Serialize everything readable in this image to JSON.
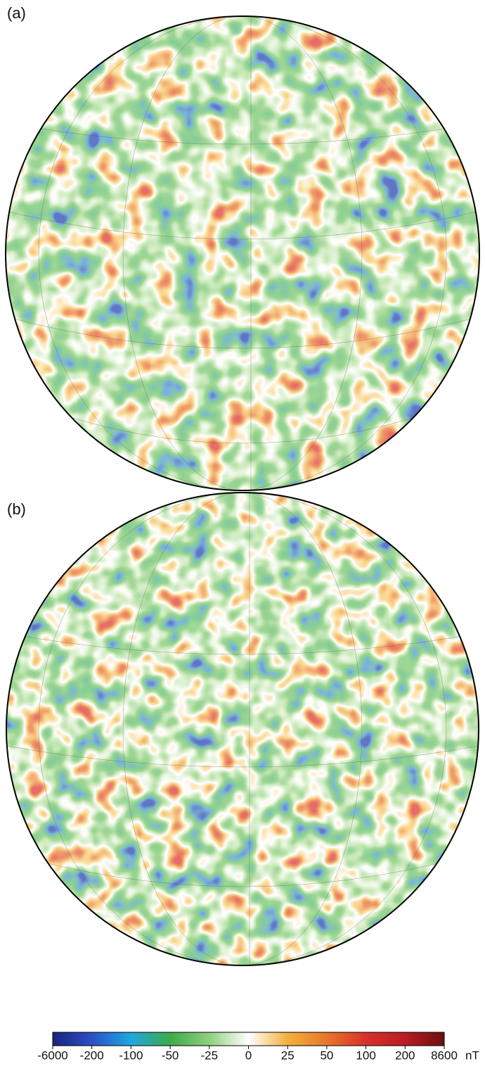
{
  "panels": [
    {
      "label": "(a)"
    },
    {
      "label": "(b)"
    }
  ],
  "colorbar": {
    "ticks": [
      -6000,
      -200,
      -100,
      -50,
      -25,
      0,
      25,
      50,
      100,
      200,
      8600
    ],
    "unit": "nT",
    "colors": [
      "#1a237e",
      "#2b50c8",
      "#1ea8e0",
      "#3daa48",
      "#8fd07e",
      "#ffffff",
      "#f3b03c",
      "#e8762a",
      "#d9302a",
      "#b81d24",
      "#6b1010"
    ]
  }
}
